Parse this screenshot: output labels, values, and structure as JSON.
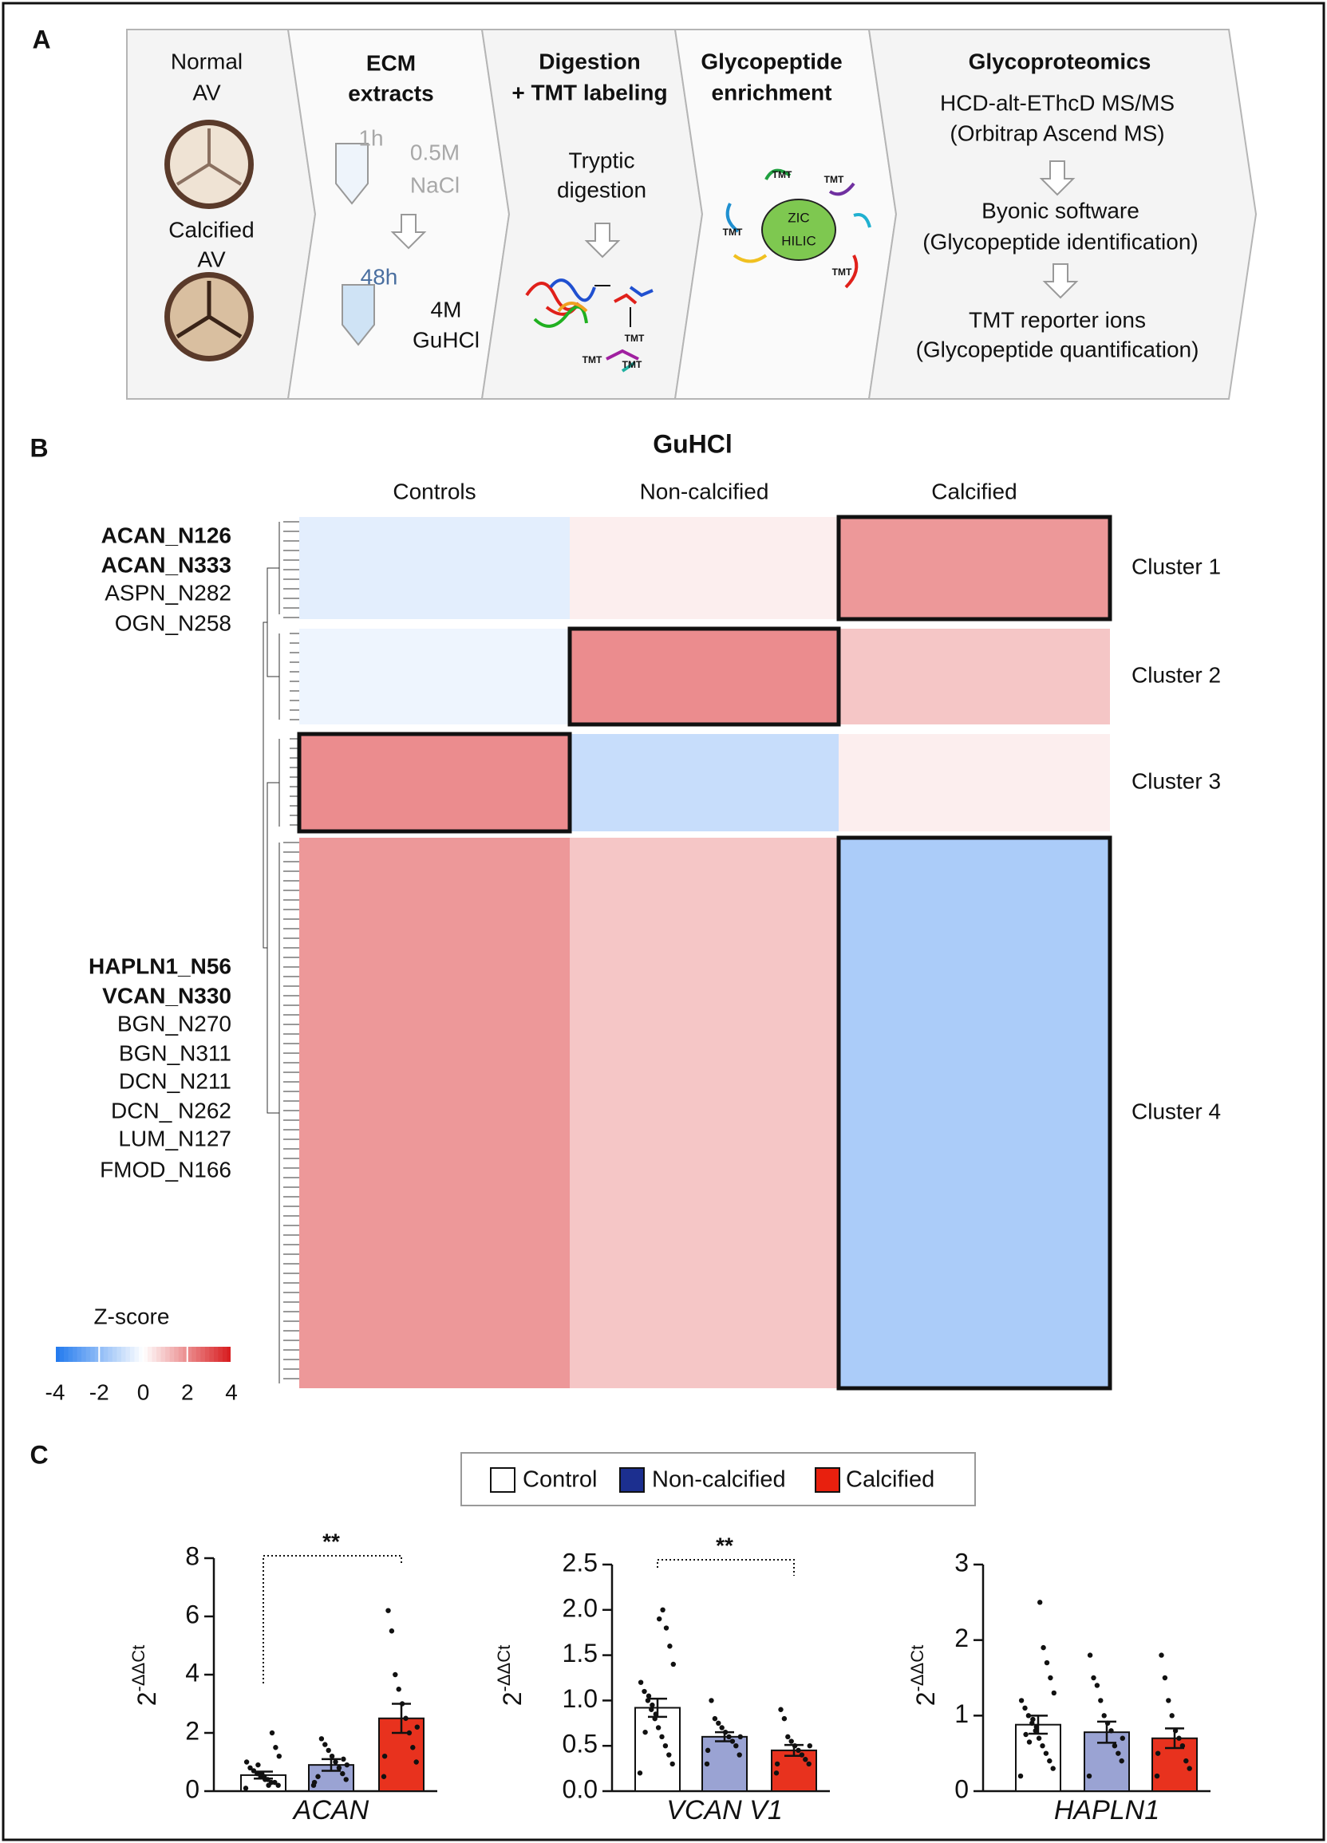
{
  "panel_a": {
    "label": "A",
    "stages": [
      {
        "texts": [
          "Normal",
          "AV",
          "Calcified",
          "AV"
        ]
      },
      {
        "texts": [
          "ECM",
          "extracts",
          "1h",
          "0.5M",
          "NaCl",
          "48h",
          "4M",
          "GuHCl"
        ]
      },
      {
        "texts": [
          "Digestion",
          "+ TMT labeling",
          "Tryptic",
          "digestion",
          "TMT",
          "TMT",
          "TMT"
        ]
      },
      {
        "texts": [
          "Glycopeptide",
          "enrichment",
          "ZIC",
          "HILIC",
          "TMT",
          "TMT",
          "TMT",
          "TMT"
        ]
      },
      {
        "texts": [
          "Glycoproteomics",
          "HCD-alt-EThcD MS/MS",
          "(Orbitrap Ascend MS)",
          "Byonic software",
          "(Glycopeptide identification)",
          "TMT reporter ions",
          "(Glycopeptide quantification)"
        ]
      }
    ]
  },
  "panel_b": {
    "label": "B",
    "chart_data": {
      "type": "heatmap",
      "title": "GuHCl",
      "columns": [
        "Controls",
        "Non-calcified",
        "Calcified"
      ],
      "rows": [
        "Cluster 1",
        "Cluster 2",
        "Cluster 3",
        "Cluster 4"
      ],
      "values": [
        [
          -0.5,
          0.3,
          1.8
        ],
        [
          -0.3,
          2,
          1
        ],
        [
          2,
          -1,
          0.3
        ],
        [
          1.8,
          1,
          -1.5
        ]
      ],
      "feature_labels": [
        {
          "text": "ACAN_N126",
          "bold": true
        },
        {
          "text": "ACAN_N333",
          "bold": true
        },
        {
          "text": "ASPN_N282",
          "bold": false
        },
        {
          "text": "OGN_N258",
          "bold": false
        },
        {
          "text": "HAPLN1_N56",
          "bold": true
        },
        {
          "text": "VCAN_N330",
          "bold": true
        },
        {
          "text": "BGN_N270",
          "bold": false
        },
        {
          "text": "BGN_N311",
          "bold": false
        },
        {
          "text": "DCN_N211",
          "bold": false
        },
        {
          "text": "DCN_ N262",
          "bold": false
        },
        {
          "text": "LUM_N127",
          "bold": false
        },
        {
          "text": "FMOD_N166",
          "bold": false
        }
      ],
      "colorbar_title": "Z-score",
      "zlim": [
        -4,
        4
      ],
      "zticks": [
        -4,
        -2,
        0,
        2,
        4
      ],
      "colors": {
        "low": "#1f78ee",
        "mid": "#ffffff",
        "high": "#d7191c"
      }
    }
  },
  "panel_c": {
    "label": "C",
    "series": [
      {
        "name": "Control",
        "color": "#ffffff",
        "legend_color": "#ffffff"
      },
      {
        "name": "Non-calcified",
        "color": "#9aa3d3",
        "legend_color": "#1c2f8f"
      },
      {
        "name": "Calcified",
        "color": "#e8321e",
        "legend_color": "#e8200e"
      }
    ],
    "chart_data": [
      {
        "type": "bar",
        "xlabel": "ACAN",
        "ylabel": {
          "base": "2",
          "sup": "-ΔΔCt"
        },
        "ylim": [
          0,
          8
        ],
        "yticks": [
          0,
          2,
          4,
          6,
          8
        ],
        "annotation": "**",
        "values": [
          0.55,
          0.9,
          2.5
        ],
        "errors": [
          0.12,
          0.2,
          0.5
        ],
        "points": [
          [
            0.1,
            0.2,
            0.3,
            0.3,
            0.4,
            0.5,
            0.5,
            0.6,
            0.7,
            0.8,
            1.0,
            1.2,
            1.5,
            2.0,
            0.2,
            0.4,
            0.6,
            0.9
          ],
          [
            0.2,
            0.4,
            0.6,
            0.8,
            1.0,
            1.2,
            1.4,
            1.6,
            1.8,
            0.5,
            0.3,
            0.9,
            1.1
          ],
          [
            0.5,
            1.0,
            1.5,
            2.0,
            2.5,
            3.0,
            3.5,
            4.0,
            5.5,
            6.2,
            1.2,
            2.2
          ]
        ]
      },
      {
        "type": "bar",
        "xlabel": "VCAN V1",
        "ylabel": {
          "base": "2",
          "sup": "-ΔΔCt"
        },
        "ylim": [
          0,
          2.5
        ],
        "yticks": [
          {
            "value": 0,
            "label": "0.0"
          },
          0.5,
          {
            "value": 1,
            "label": "1.0"
          },
          1.5,
          {
            "value": 2,
            "label": "2.0"
          },
          2.5
        ],
        "annotation": "**",
        "values": [
          0.92,
          0.6,
          0.45
        ],
        "errors": [
          0.1,
          0.05,
          0.06
        ],
        "points": [
          [
            0.2,
            0.3,
            0.4,
            0.5,
            0.6,
            0.7,
            0.8,
            0.9,
            1.0,
            1.1,
            1.2,
            1.4,
            1.6,
            1.8,
            2.0,
            1.9,
            0.85,
            0.95,
            1.05,
            0.65
          ],
          [
            0.3,
            0.4,
            0.5,
            0.55,
            0.6,
            0.65,
            0.7,
            0.75,
            0.8,
            1.0,
            0.45,
            0.6
          ],
          [
            0.2,
            0.3,
            0.35,
            0.4,
            0.45,
            0.5,
            0.55,
            0.6,
            0.8,
            0.9,
            0.3,
            0.5
          ]
        ]
      },
      {
        "type": "bar",
        "xlabel": "HAPLN1",
        "ylabel": {
          "base": "2",
          "sup": "-ΔΔCt"
        },
        "ylim": [
          0,
          3
        ],
        "yticks": [
          0,
          1,
          2,
          3
        ],
        "annotation": null,
        "values": [
          0.88,
          0.78,
          0.7
        ],
        "errors": [
          0.12,
          0.14,
          0.13
        ],
        "points": [
          [
            0.2,
            0.3,
            0.4,
            0.5,
            0.6,
            0.7,
            0.8,
            0.9,
            1.0,
            1.1,
            1.2,
            1.3,
            1.5,
            1.7,
            1.9,
            2.5,
            0.85,
            0.95,
            0.65,
            0.75
          ],
          [
            0.2,
            0.4,
            0.5,
            0.6,
            0.8,
            0.9,
            1.0,
            1.2,
            1.4,
            1.5,
            1.8,
            0.7
          ],
          [
            0.2,
            0.3,
            0.4,
            0.6,
            0.7,
            0.8,
            1.0,
            1.2,
            1.5,
            1.8,
            0.5
          ]
        ]
      }
    ]
  }
}
